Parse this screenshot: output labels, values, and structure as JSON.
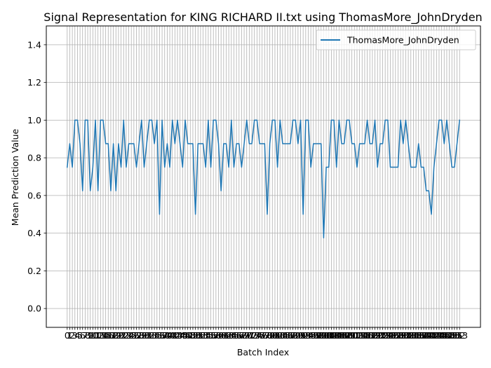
{
  "chart_data": {
    "type": "line",
    "title": "Signal Representation for KING RICHARD II.txt using ThomasMore_JohnDryden",
    "xlabel": "Batch Index",
    "ylabel": "Mean Prediction Value",
    "ylim": [
      -0.1,
      1.5
    ],
    "yticks": [
      0.0,
      0.2,
      0.4,
      0.6,
      0.8,
      1.0,
      1.2,
      1.4
    ],
    "yticks_text": [
      "0.0",
      "0.2",
      "0.4",
      "0.6",
      "0.8",
      "1.0",
      "1.2",
      "1.4"
    ],
    "grid": true,
    "legend": "top-right",
    "series": [
      {
        "name": "ThomasMore_JohnDryden",
        "color": "#1f77b4",
        "values": [
          0.75,
          0.875,
          0.75,
          1.0,
          1.0,
          0.875,
          0.625,
          1.0,
          1.0,
          0.625,
          0.75,
          1.0,
          0.625,
          1.0,
          1.0,
          0.875,
          0.875,
          0.625,
          0.875,
          0.625,
          0.875,
          0.75,
          1.0,
          0.75,
          0.875,
          0.875,
          0.875,
          0.75,
          0.875,
          1.0,
          0.75,
          0.875,
          1.0,
          1.0,
          0.875,
          1.0,
          0.5,
          1.0,
          0.75,
          0.875,
          0.75,
          1.0,
          0.875,
          1.0,
          0.875,
          0.75,
          1.0,
          0.875,
          0.875,
          0.875,
          0.5,
          0.875,
          0.875,
          0.875,
          0.75,
          1.0,
          0.75,
          1.0,
          1.0,
          0.875,
          0.625,
          0.875,
          0.875,
          0.75,
          1.0,
          0.75,
          0.875,
          0.875,
          0.75,
          0.875,
          1.0,
          0.875,
          0.875,
          1.0,
          1.0,
          0.875,
          0.875,
          0.875,
          0.5,
          0.875,
          1.0,
          1.0,
          0.75,
          1.0,
          0.875,
          0.875,
          0.875,
          0.875,
          1.0,
          1.0,
          0.875,
          1.0,
          0.5,
          1.0,
          1.0,
          0.75,
          0.875,
          0.875,
          0.875,
          0.875,
          0.375,
          0.75,
          0.75,
          1.0,
          1.0,
          0.75,
          1.0,
          0.875,
          0.875,
          1.0,
          1.0,
          0.875,
          0.875,
          0.75,
          0.875,
          0.875,
          0.875,
          1.0,
          0.875,
          0.875,
          1.0,
          0.75,
          0.875,
          0.875,
          1.0,
          1.0,
          0.75,
          0.75,
          0.75,
          0.75,
          1.0,
          0.875,
          1.0,
          0.875,
          0.75,
          0.75,
          0.75,
          0.875,
          0.75,
          0.75,
          0.625,
          0.625,
          0.5,
          0.75,
          0.875,
          1.0,
          1.0,
          0.875,
          1.0,
          0.875,
          0.75,
          0.75,
          0.875,
          1.0
        ]
      }
    ]
  }
}
